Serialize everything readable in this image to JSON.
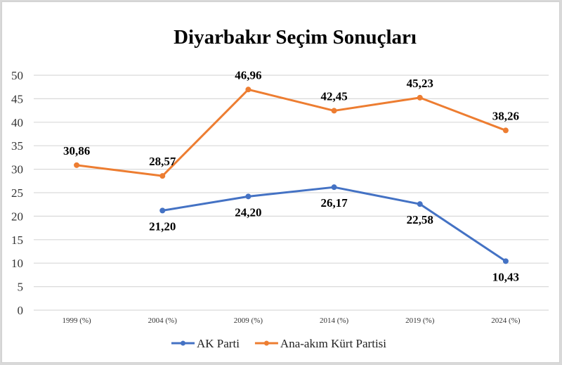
{
  "chart_data": {
    "type": "line",
    "title": "Diyarbakır Seçim Sonuçları",
    "xlabel": "",
    "ylabel": "",
    "ylim": [
      0,
      50
    ],
    "yticks": [
      0,
      5,
      10,
      15,
      20,
      25,
      30,
      35,
      40,
      45,
      50
    ],
    "grid": true,
    "legend_position": "bottom",
    "categories": [
      "1999 (%)",
      "2004 (%)",
      "2009 (%)",
      "2014 (%)",
      "2019 (%)",
      "2024 (%)"
    ],
    "series": [
      {
        "name": "AK Parti",
        "color": "#4472c4",
        "values": [
          null,
          21.2,
          24.2,
          26.17,
          22.58,
          10.43
        ],
        "labels": [
          null,
          "21,20",
          "24,20",
          "26,17",
          "22,58",
          "10,43"
        ],
        "label_position": "below"
      },
      {
        "name": "Ana-akım Kürt Partisi",
        "color": "#ed7d31",
        "values": [
          30.86,
          28.57,
          46.96,
          42.45,
          45.23,
          38.26
        ],
        "labels": [
          "30,86",
          "28,57",
          "46,96",
          "42,45",
          "45,23",
          "38,26"
        ],
        "label_position": "above"
      }
    ]
  }
}
